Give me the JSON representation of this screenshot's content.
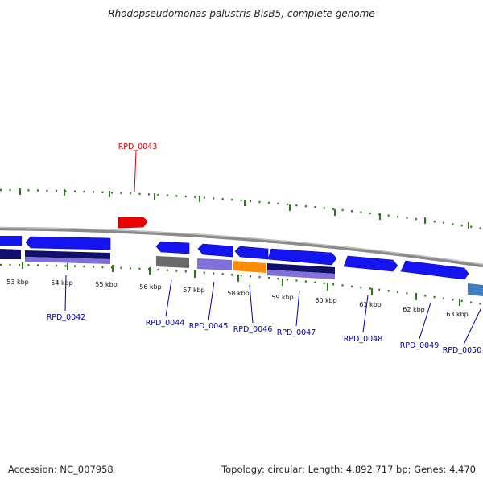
{
  "title": "Rhodopseudomonas palustris BisB5, complete genome",
  "footer": {
    "accession_label": "Accession:",
    "accession": "NC_007958",
    "topology_label": "Topology:",
    "topology": "circular",
    "length_label": "Length:",
    "length": "4,892,717 bp",
    "genes_label": "Genes:",
    "genes": "4,470"
  },
  "colors": {
    "backbone": "#8a8a8a",
    "tick": "#2a7a1a",
    "highlight_gene": "#ee0000",
    "gene_blue": "#1414f0",
    "gene_dark": "#10106a",
    "gene_lavender": "#8070d8",
    "gene_gray": "#6a6a6a",
    "gene_orange": "#ff8c00",
    "gene_steel": "#3f7fbf",
    "label_blue": "#0000aa",
    "label_red": "#dd0000"
  },
  "scale": {
    "unit": "kbp",
    "labels": [
      "53 kbp",
      "54 kbp",
      "55 kbp",
      "56 kbp",
      "57 kbp",
      "58 kbp",
      "59 kbp",
      "60 kbp",
      "61 kbp",
      "62 kbp",
      "63 kbp"
    ]
  },
  "gene_labels": [
    {
      "id": "RPD_0043",
      "color": "red"
    },
    {
      "id": "RPD_0042",
      "color": "blue"
    },
    {
      "id": "RPD_0044",
      "color": "blue"
    },
    {
      "id": "RPD_0045",
      "color": "blue"
    },
    {
      "id": "RPD_0046",
      "color": "blue"
    },
    {
      "id": "RPD_0047",
      "color": "blue"
    },
    {
      "id": "RPD_0048",
      "color": "blue"
    },
    {
      "id": "RPD_0049",
      "color": "blue"
    },
    {
      "id": "RPD_0050",
      "color": "blue"
    }
  ]
}
